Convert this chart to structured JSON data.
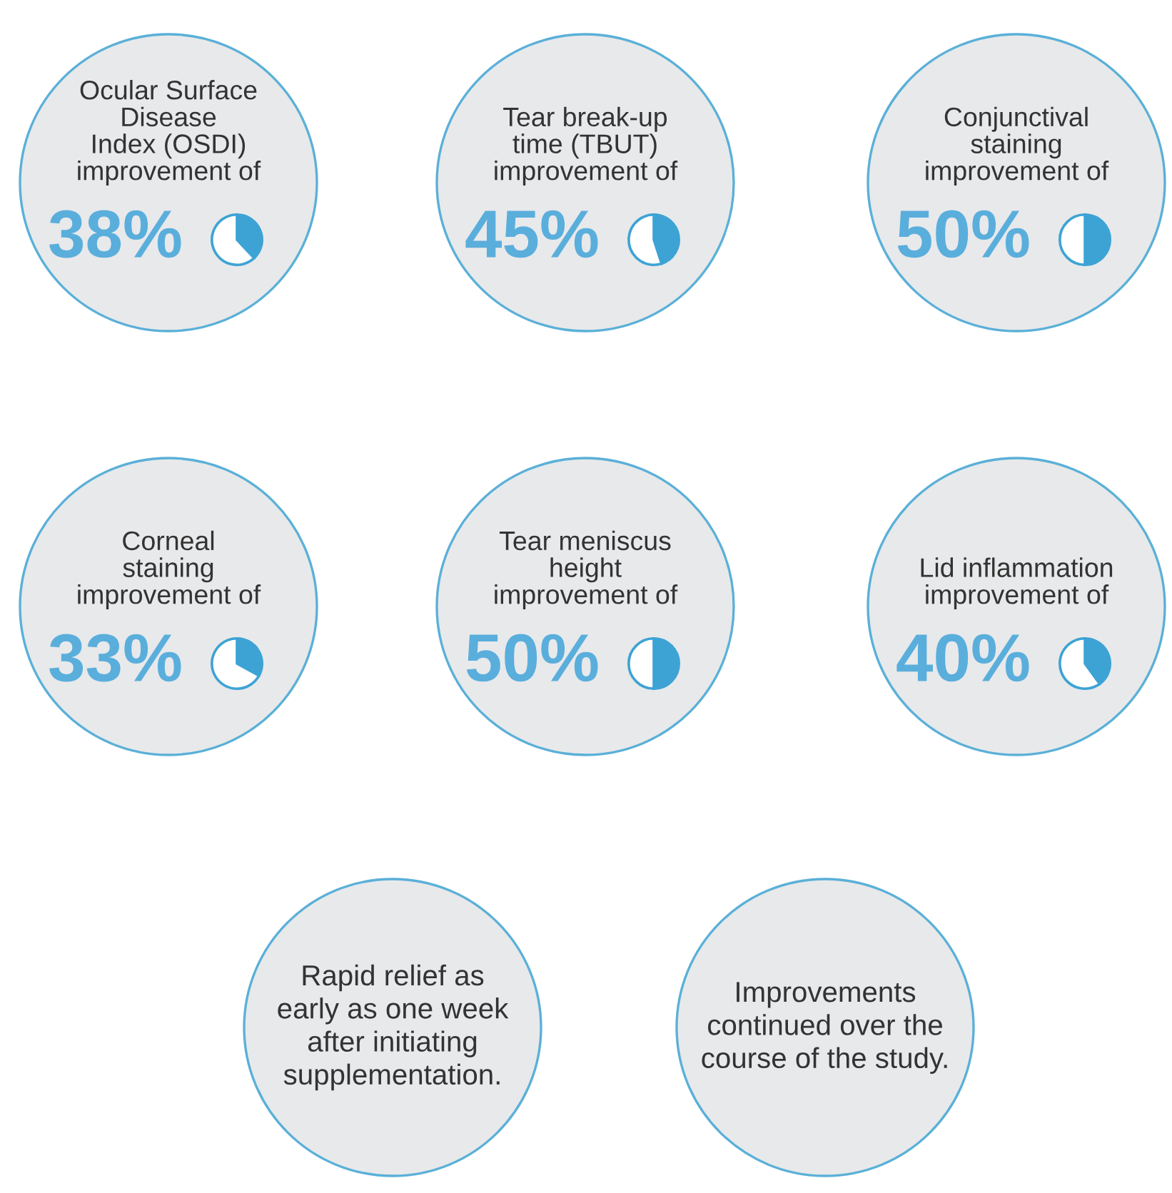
{
  "chart_data": [
    {
      "type": "pie",
      "title": "Ocular Surface\nDisease\nIndex (OSDI)\nimprovement of",
      "categories": [
        null,
        null
      ],
      "values": [
        38,
        62
      ],
      "colors": [
        "#3da3d5",
        "#ffffff"
      ],
      "value_labels": [
        "38%",
        null
      ]
    },
    {
      "type": "pie",
      "title": "Tear break-up\ntime (TBUT)\nimprovement of",
      "categories": [
        null,
        null
      ],
      "values": [
        45,
        55
      ],
      "colors": [
        "#3da3d5",
        "#ffffff"
      ],
      "value_labels": [
        "45%",
        null
      ]
    },
    {
      "type": "pie",
      "title": "Conjunctival\nstaining\nimprovement of",
      "categories": [
        null,
        null
      ],
      "values": [
        50,
        50
      ],
      "colors": [
        "#3da3d5",
        "#ffffff"
      ],
      "value_labels": [
        "50%",
        null
      ]
    },
    {
      "type": "pie",
      "title": "Corneal\nstaining\nimprovement of",
      "categories": [
        null,
        null
      ],
      "values": [
        33,
        67
      ],
      "colors": [
        "#3da3d5",
        "#ffffff"
      ],
      "value_labels": [
        "33%",
        null
      ]
    },
    {
      "type": "pie",
      "title": "Tear meniscus\nheight\nimprovement of",
      "categories": [
        null,
        null
      ],
      "values": [
        50,
        50
      ],
      "colors": [
        "#3da3d5",
        "#ffffff"
      ],
      "value_labels": [
        "50%",
        null
      ]
    },
    {
      "type": "pie",
      "title": "Lid inflammation\nimprovement of",
      "categories": [
        null,
        null
      ],
      "values": [
        40,
        60
      ],
      "colors": [
        "#3da3d5",
        "#ffffff"
      ],
      "value_labels": [
        "40%",
        null
      ]
    },
    {
      "type": "other",
      "title": "Rapid relief as\nearly as one week\nafter initiating\nsupplementation."
    },
    {
      "type": "other",
      "title": "Improvements\ncontinued over the\ncourse of the study."
    }
  ]
}
